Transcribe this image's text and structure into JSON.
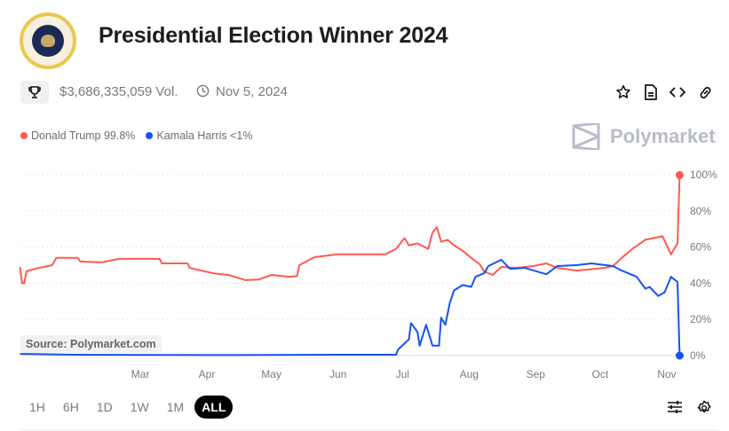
{
  "header": {
    "title": "Presidential Election Winner 2024",
    "seal_text": "SEAL OF THE PRESIDENT OF THE UNITED STATES",
    "volume": "$3,686,335,059 Vol.",
    "end_date": "Nov 5, 2024",
    "brand": "Polymarket"
  },
  "legend": [
    {
      "label": "Donald Trump 99.8%",
      "color": "#ff5a50"
    },
    {
      "label": "Kamala Harris <1%",
      "color": "#1652f0"
    }
  ],
  "source_label": "Source: Polymarket.com",
  "ranges": [
    {
      "label": "1H",
      "active": false
    },
    {
      "label": "6H",
      "active": false
    },
    {
      "label": "1D",
      "active": false
    },
    {
      "label": "1W",
      "active": false
    },
    {
      "label": "1M",
      "active": false
    },
    {
      "label": "ALL",
      "active": true
    }
  ],
  "chart_data": {
    "type": "line",
    "title": "",
    "xlabel": "",
    "ylabel": "",
    "x_unit": "day of year 2024",
    "xlim": [
      5,
      312
    ],
    "ylim": [
      0,
      100
    ],
    "y_ticks": [
      {
        "value": 0,
        "label": "0%"
      },
      {
        "value": 20,
        "label": "20%"
      },
      {
        "value": 40,
        "label": "40%"
      },
      {
        "value": 60,
        "label": "60%"
      },
      {
        "value": 80,
        "label": "80%"
      },
      {
        "value": 100,
        "label": "100%"
      }
    ],
    "x_ticks": [
      {
        "value": 61,
        "label": "Mar"
      },
      {
        "value": 92,
        "label": "Apr"
      },
      {
        "value": 122,
        "label": "May"
      },
      {
        "value": 153,
        "label": "Jun"
      },
      {
        "value": 183,
        "label": "Jul"
      },
      {
        "value": 214,
        "label": "Aug"
      },
      {
        "value": 245,
        "label": "Sep"
      },
      {
        "value": 275,
        "label": "Oct"
      },
      {
        "value": 306,
        "label": "Nov"
      }
    ],
    "grid": true,
    "legend_position": "top-left",
    "series": [
      {
        "name": "Donald Trump",
        "color": "#ff5a50",
        "x": [
          5,
          6,
          7,
          8,
          12,
          20,
          22,
          32,
          33,
          43,
          51,
          70,
          71,
          83,
          84,
          95,
          102,
          110,
          116,
          122,
          130,
          134,
          135,
          142,
          153,
          169,
          175,
          180,
          184,
          186,
          190,
          195,
          197,
          199,
          201,
          204,
          207,
          211,
          215,
          219,
          221,
          225,
          229,
          236,
          244,
          250,
          255,
          264,
          277,
          281,
          285,
          290,
          296,
          304,
          308,
          311,
          312
        ],
        "y": [
          49,
          40,
          40,
          46.5,
          48,
          50,
          54,
          54,
          52,
          51.5,
          53.5,
          53.5,
          51,
          51,
          48.5,
          45.5,
          44.6,
          41.7,
          42,
          44.6,
          43.6,
          44,
          50,
          54.4,
          56,
          56,
          56,
          59,
          65,
          61,
          62,
          59,
          68,
          71,
          63,
          64,
          61,
          58,
          54,
          50.5,
          46.5,
          44.6,
          49,
          48.5,
          49.5,
          51,
          48.5,
          47,
          48.5,
          49.5,
          54,
          59,
          64,
          66,
          56,
          62,
          99.8
        ]
      },
      {
        "name": "Kamala Harris",
        "color": "#1652f0",
        "x": [
          5,
          30,
          100,
          150,
          180,
          181,
          186,
          187,
          190,
          191,
          194,
          197,
          200,
          201,
          203,
          205,
          207,
          211,
          215,
          217,
          221,
          223,
          229,
          233,
          240,
          244,
          250,
          255,
          264,
          271,
          281,
          285,
          292,
          296,
          298,
          302,
          305,
          308,
          311,
          312
        ],
        "y": [
          1,
          0.5,
          0.3,
          0.5,
          0.5,
          3.4,
          9,
          18,
          13,
          5.5,
          17,
          5.5,
          5.5,
          21,
          17,
          29,
          36,
          39,
          38,
          43.6,
          45.5,
          49.5,
          53,
          48,
          48.5,
          47,
          45,
          49.5,
          50,
          51,
          49.5,
          47,
          43.6,
          37,
          38,
          33,
          35,
          43.6,
          40.7,
          0
        ]
      }
    ]
  }
}
